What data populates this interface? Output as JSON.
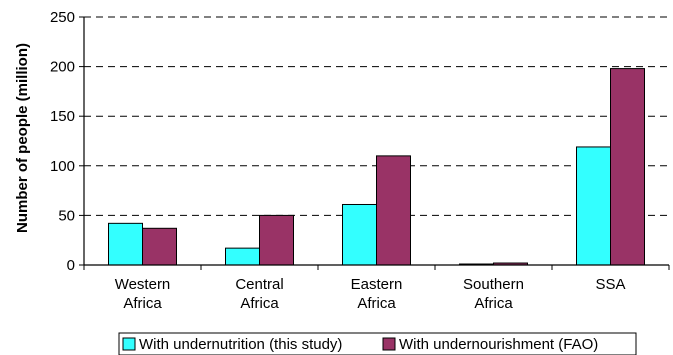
{
  "chart_data": {
    "type": "bar",
    "title": "",
    "xlabel": "",
    "ylabel": "Number of people (million)",
    "categories": [
      [
        "Western",
        "Africa"
      ],
      [
        "Central",
        "Africa"
      ],
      [
        "Eastern",
        "Africa"
      ],
      [
        "Southern",
        "Africa"
      ],
      [
        "SSA"
      ]
    ],
    "series": [
      {
        "name": "With undernutrition (this study)",
        "color": "#33ffff",
        "values": [
          42,
          17,
          61,
          1,
          119
        ]
      },
      {
        "name": "With undernourishment (FAO)",
        "color": "#993366",
        "values": [
          37,
          50,
          110,
          2,
          198
        ]
      }
    ],
    "ylim": [
      0,
      250
    ],
    "yticks": [
      0,
      50,
      100,
      150,
      200,
      250
    ],
    "grid": "dashed horizontal",
    "legend_position": "bottom"
  }
}
